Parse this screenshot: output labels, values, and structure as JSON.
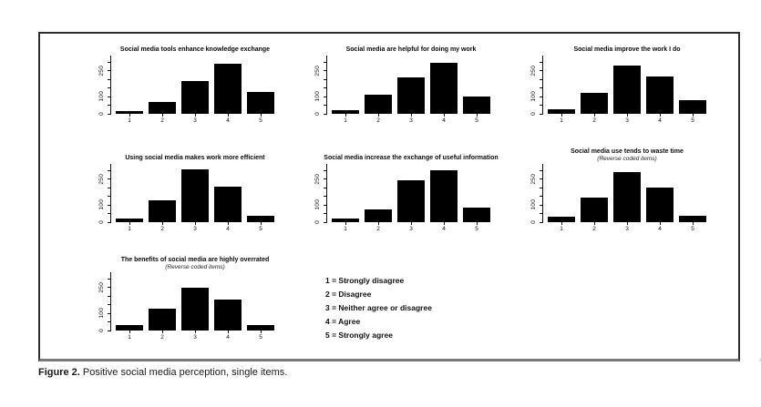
{
  "figure": {
    "caption": {
      "label": "Figure 2.",
      "text": "Positive social media perception, single items."
    }
  },
  "legend": {
    "items": [
      "1 = Strongly disagree",
      "2 = Disagree",
      "3 = Neither agree or disagree",
      "4 = Agree",
      "5 = Strongly agree"
    ]
  },
  "edge_artifacts": {
    "glyph1": "/",
    "glyph2": "("
  },
  "style": {
    "bar_color": "#000000",
    "box_border_color": "#2e2e2e"
  },
  "axis_defaults": {
    "ymax": 340,
    "yticks_labeled": [
      0,
      100,
      250
    ],
    "yticks_minor": [
      50,
      150,
      200,
      300
    ]
  },
  "chart_data": [
    {
      "type": "bar",
      "title": "Social media tools enhance knowledge exchange",
      "subtitle": "",
      "categories": [
        "1",
        "2",
        "3",
        "4",
        "5"
      ],
      "values": [
        15,
        70,
        190,
        290,
        125
      ],
      "ylim": [
        0,
        340
      ],
      "yticks": [
        0,
        100,
        250
      ],
      "xlabel": "",
      "ylabel": "",
      "bar_color": "#000000"
    },
    {
      "type": "bar",
      "title": "Social media are helpful for doing my work",
      "subtitle": "",
      "categories": [
        "1",
        "2",
        "3",
        "4",
        "5"
      ],
      "values": [
        20,
        110,
        215,
        295,
        100
      ],
      "ylim": [
        0,
        340
      ],
      "yticks": [
        0,
        100,
        250
      ],
      "xlabel": "",
      "ylabel": "",
      "bar_color": "#000000"
    },
    {
      "type": "bar",
      "title": "Social media improve the work I do",
      "subtitle": "",
      "categories": [
        "1",
        "2",
        "3",
        "4",
        "5"
      ],
      "values": [
        25,
        120,
        280,
        220,
        80
      ],
      "ylim": [
        0,
        340
      ],
      "yticks": [
        0,
        100,
        250
      ],
      "xlabel": "",
      "ylabel": "",
      "bar_color": "#000000"
    },
    {
      "type": "bar",
      "title": "Using social media makes work more efficient",
      "subtitle": "",
      "categories": [
        "1",
        "2",
        "3",
        "4",
        "5"
      ],
      "values": [
        20,
        125,
        310,
        205,
        35
      ],
      "ylim": [
        0,
        340
      ],
      "yticks": [
        0,
        100,
        250
      ],
      "xlabel": "",
      "ylabel": "",
      "bar_color": "#000000"
    },
    {
      "type": "bar",
      "title": "Social media increase the exchange of useful information",
      "subtitle": "",
      "categories": [
        "1",
        "2",
        "3",
        "4",
        "5"
      ],
      "values": [
        20,
        75,
        245,
        305,
        85
      ],
      "ylim": [
        0,
        340
      ],
      "yticks": [
        0,
        100,
        250
      ],
      "xlabel": "",
      "ylabel": "",
      "bar_color": "#000000"
    },
    {
      "type": "bar",
      "title": "Social media use tends to waste time",
      "subtitle": "(Reverse coded items)",
      "categories": [
        "1",
        "2",
        "3",
        "4",
        "5"
      ],
      "values": [
        30,
        145,
        290,
        200,
        35
      ],
      "ylim": [
        0,
        340
      ],
      "yticks": [
        0,
        100,
        250
      ],
      "xlabel": "",
      "ylabel": "",
      "bar_color": "#000000"
    },
    {
      "type": "bar",
      "title": "The benefits of social media are highly overrated",
      "subtitle": "(Reverse coded items)",
      "categories": [
        "1",
        "2",
        "3",
        "4",
        "5"
      ],
      "values": [
        30,
        125,
        250,
        180,
        30
      ],
      "ylim": [
        0,
        340
      ],
      "yticks": [
        0,
        100,
        250
      ],
      "xlabel": "",
      "ylabel": "",
      "bar_color": "#000000"
    }
  ]
}
